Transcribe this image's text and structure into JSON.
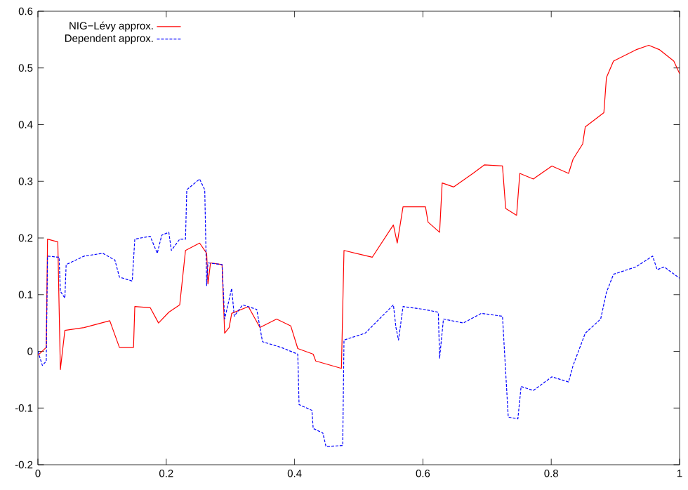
{
  "chart_data": {
    "type": "line",
    "xlim": [
      0,
      1
    ],
    "ylim": [
      -0.2,
      0.6
    ],
    "xticks": [
      0,
      0.2,
      0.4,
      0.6,
      0.8,
      1
    ],
    "yticks": [
      -0.2,
      -0.1,
      0,
      0.1,
      0.2,
      0.3,
      0.4,
      0.5,
      0.6
    ],
    "legend": "top left",
    "grid": false,
    "series": [
      {
        "name": "NIG−Lévy approx.",
        "color": "#ff0000",
        "line_style": "solid",
        "x": [
          0,
          0.013,
          0.015,
          0.031,
          0.035,
          0.042,
          0.072,
          0.112,
          0.127,
          0.149,
          0.151,
          0.175,
          0.188,
          0.204,
          0.221,
          0.23,
          0.252,
          0.263,
          0.265,
          0.269,
          0.287,
          0.291,
          0.298,
          0.302,
          0.328,
          0.346,
          0.372,
          0.394,
          0.405,
          0.429,
          0.433,
          0.473,
          0.477,
          0.521,
          0.554,
          0.56,
          0.569,
          0.604,
          0.608,
          0.626,
          0.63,
          0.648,
          0.678,
          0.696,
          0.724,
          0.729,
          0.746,
          0.751,
          0.772,
          0.801,
          0.827,
          0.834,
          0.849,
          0.853,
          0.882,
          0.886,
          0.897,
          0.932,
          0.952,
          0.969,
          0.991,
          1.0
        ],
        "values": [
          -0.007,
          0.007,
          0.198,
          0.193,
          -0.032,
          0.037,
          0.042,
          0.054,
          0.007,
          0.007,
          0.079,
          0.077,
          0.05,
          0.069,
          0.082,
          0.178,
          0.191,
          0.173,
          0.119,
          0.156,
          0.153,
          0.032,
          0.042,
          0.067,
          0.079,
          0.042,
          0.057,
          0.045,
          0.005,
          -0.005,
          -0.017,
          -0.03,
          0.178,
          0.166,
          0.223,
          0.191,
          0.255,
          0.255,
          0.228,
          0.21,
          0.297,
          0.29,
          0.314,
          0.329,
          0.327,
          0.252,
          0.24,
          0.314,
          0.304,
          0.327,
          0.314,
          0.339,
          0.366,
          0.396,
          0.421,
          0.483,
          0.512,
          0.532,
          0.54,
          0.532,
          0.512,
          0.49
        ]
      },
      {
        "name": "Dependent approx.",
        "color": "#0000ff",
        "line_style": "dashed",
        "x": [
          0,
          0.007,
          0.013,
          0.015,
          0.033,
          0.035,
          0.042,
          0.044,
          0.072,
          0.101,
          0.12,
          0.127,
          0.147,
          0.151,
          0.175,
          0.186,
          0.193,
          0.204,
          0.208,
          0.221,
          0.23,
          0.232,
          0.252,
          0.26,
          0.263,
          0.265,
          0.287,
          0.291,
          0.302,
          0.306,
          0.319,
          0.341,
          0.35,
          0.379,
          0.405,
          0.407,
          0.427,
          0.429,
          0.444,
          0.449,
          0.475,
          0.477,
          0.51,
          0.532,
          0.554,
          0.558,
          0.562,
          0.569,
          0.602,
          0.624,
          0.626,
          0.632,
          0.663,
          0.691,
          0.724,
          0.733,
          0.748,
          0.753,
          0.772,
          0.801,
          0.827,
          0.834,
          0.853,
          0.877,
          0.886,
          0.897,
          0.932,
          0.958,
          0.965,
          0.976,
          1.0
        ],
        "values": [
          0,
          -0.025,
          -0.017,
          0.168,
          0.166,
          0.106,
          0.094,
          0.153,
          0.168,
          0.173,
          0.161,
          0.131,
          0.124,
          0.198,
          0.203,
          0.173,
          0.205,
          0.21,
          0.178,
          0.198,
          0.198,
          0.285,
          0.304,
          0.285,
          0.116,
          0.156,
          0.153,
          0.057,
          0.111,
          0.062,
          0.082,
          0.074,
          0.017,
          0.007,
          -0.005,
          -0.094,
          -0.104,
          -0.136,
          -0.144,
          -0.168,
          -0.166,
          0.02,
          0.032,
          0.057,
          0.082,
          0.042,
          0.02,
          0.079,
          0.074,
          0.069,
          -0.012,
          0.057,
          0.05,
          0.067,
          0.062,
          -0.116,
          -0.119,
          -0.062,
          -0.069,
          -0.045,
          -0.054,
          -0.025,
          0.032,
          0.057,
          0.104,
          0.136,
          0.149,
          0.168,
          0.144,
          0.149,
          0.129
        ]
      }
    ]
  }
}
